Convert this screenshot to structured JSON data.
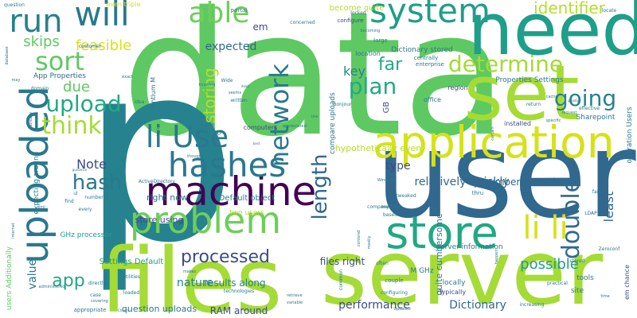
{
  "palette": {
    "background": "#ffffff",
    "lime": "#a5db36",
    "green": "#6ece58",
    "light_green": "#5ec962",
    "teal": "#22a884",
    "sea": "#1f9e89",
    "cyan": "#26828e",
    "steel": "#2a788e",
    "blue": "#31688e",
    "indigo": "#3e4a89",
    "purple": "#482878",
    "dark": "#440154",
    "yellow": "#d5e21a",
    "gold": "#fde725",
    "yellow_green": "#b5de2b"
  },
  "words": [
    {
      "text": "data"
    },
    {
      "text": "p"
    },
    {
      "text": "user"
    },
    {
      "text": "server"
    },
    {
      "text": "files"
    },
    {
      "text": "need"
    },
    {
      "text": "set"
    },
    {
      "text": "application"
    },
    {
      "text": "machine"
    },
    {
      "text": "hashes"
    },
    {
      "text": "problem"
    },
    {
      "text": "store"
    },
    {
      "text": "uploaded"
    },
    {
      "text": "li li"
    },
    {
      "text": "li Use"
    },
    {
      "text": "system"
    },
    {
      "text": "run"
    },
    {
      "text": "will"
    },
    {
      "text": "sort"
    },
    {
      "text": "able"
    },
    {
      "text": "network"
    },
    {
      "text": "determine"
    },
    {
      "text": "upload"
    },
    {
      "text": "think"
    },
    {
      "text": "plan"
    },
    {
      "text": "going"
    },
    {
      "text": "double"
    },
    {
      "text": "length"
    },
    {
      "text": "hash"
    },
    {
      "text": "processed"
    },
    {
      "text": "storing"
    },
    {
      "text": "identifier"
    },
    {
      "text": "app"
    },
    {
      "text": "Note"
    },
    {
      "text": "feasible"
    },
    {
      "text": "skips"
    },
    {
      "text": "due"
    },
    {
      "text": "far"
    },
    {
      "text": "key"
    },
    {
      "text": "expected"
    },
    {
      "text": "em"
    },
    {
      "text": "Dictionary"
    },
    {
      "text": "possible"
    },
    {
      "text": "value"
    },
    {
      "text": "least"
    },
    {
      "text": "performance"
    },
    {
      "text": "nature"
    },
    {
      "text": "type"
    },
    {
      "text": "relatively quickly"
    },
    {
      "text": "cumbersome due"
    },
    {
      "text": "quite cumbersome"
    },
    {
      "text": "hypothetically even"
    },
    {
      "text": "files right"
    },
    {
      "text": "results along"
    },
    {
      "text": "question uploads"
    },
    {
      "text": "RAM around"
    },
    {
      "text": "store using"
    },
    {
      "text": "right now"
    },
    {
      "text": "Default object"
    },
    {
      "text": "Settings Default"
    },
    {
      "text": "server information"
    },
    {
      "text": "App Properties"
    },
    {
      "text": "Properties Settings"
    },
    {
      "text": "Dictionary stored"
    },
    {
      "text": "become quite"
    },
    {
      "text": "compare uploads"
    },
    {
      "text": "even triple"
    },
    {
      "text": "Pentium M"
    },
    {
      "text": "GHz processor"
    },
    {
      "text": "two users"
    },
    {
      "text": "expecting around"
    },
    {
      "text": "users Additionally"
    },
    {
      "text": "M GHz"
    },
    {
      "text": "locally"
    },
    {
      "text": "Typically"
    },
    {
      "text": "operation Users"
    },
    {
      "text": "Sharepoint"
    },
    {
      "text": "tools"
    },
    {
      "text": "em chance"
    },
    {
      "text": "site"
    },
    {
      "text": "GB"
    },
    {
      "text": "computers"
    },
    {
      "text": "installed"
    },
    {
      "text": "office"
    },
    {
      "text": "region"
    },
    {
      "text": "location"
    },
    {
      "text": "configure"
    },
    {
      "text": "large"
    },
    {
      "text": "enterprise"
    },
    {
      "text": "centrally"
    },
    {
      "text": "portal"
    },
    {
      "text": "locked"
    },
    {
      "text": "concerned"
    },
    {
      "text": "locate"
    },
    {
      "text": "question"
    },
    {
      "text": "customer"
    },
    {
      "text": "database"
    },
    {
      "text": "domain"
    },
    {
      "text": "idea"
    },
    {
      "text": "written"
    },
    {
      "text": "Wide"
    },
    {
      "text": "knowing"
    },
    {
      "text": "seems"
    },
    {
      "text": "Use"
    },
    {
      "text": "Bonjour"
    },
    {
      "text": "Zeroconf"
    },
    {
      "text": "stored"
    },
    {
      "text": "thru"
    },
    {
      "text": "tweaked"
    },
    {
      "text": "method"
    },
    {
      "text": "company"
    },
    {
      "text": "based"
    },
    {
      "text": "many"
    },
    {
      "text": "LDAP"
    },
    {
      "text": "fails"
    },
    {
      "text": "ActiveDirectory"
    },
    {
      "text": "Windows"
    },
    {
      "text": "number"
    },
    {
      "text": "every"
    },
    {
      "text": "find"
    },
    {
      "text": "ul"
    },
    {
      "text": "xml"
    },
    {
      "text": "utilities"
    },
    {
      "text": "loaded"
    },
    {
      "text": "case"
    },
    {
      "text": "directly"
    },
    {
      "text": "appropriate"
    },
    {
      "text": "covering"
    },
    {
      "text": "technologies"
    },
    {
      "text": "couple"
    },
    {
      "text": "configuring"
    },
    {
      "text": "retrieve"
    },
    {
      "text": "variable"
    },
    {
      "text": "often"
    },
    {
      "text": "mostly"
    },
    {
      "text": "practical"
    },
    {
      "text": "happen"
    },
    {
      "text": "time"
    },
    {
      "text": "increasing"
    },
    {
      "text": "Updated"
    },
    {
      "text": "common"
    },
    {
      "text": "internet"
    },
    {
      "text": "administered"
    },
    {
      "text": "XP"
    },
    {
      "text": "update"
    },
    {
      "text": "thought"
    },
    {
      "text": "makes"
    },
    {
      "text": "return"
    },
    {
      "text": "specific"
    },
    {
      "text": "cache"
    },
    {
      "text": "effective"
    },
    {
      "text": "request"
    },
    {
      "text": "exact"
    },
    {
      "text": "may"
    },
    {
      "text": "already"
    },
    {
      "text": "becoming"
    },
    {
      "text": "login"
    },
    {
      "text": "certain"
    },
    {
      "text": "appreciated"
    },
    {
      "text": "guidance"
    },
    {
      "text": "Cheers"
    },
    {
      "text": "dealt"
    },
    {
      "text": "greatly"
    },
    {
      "text": "best"
    },
    {
      "text": "contend"
    }
  ]
}
